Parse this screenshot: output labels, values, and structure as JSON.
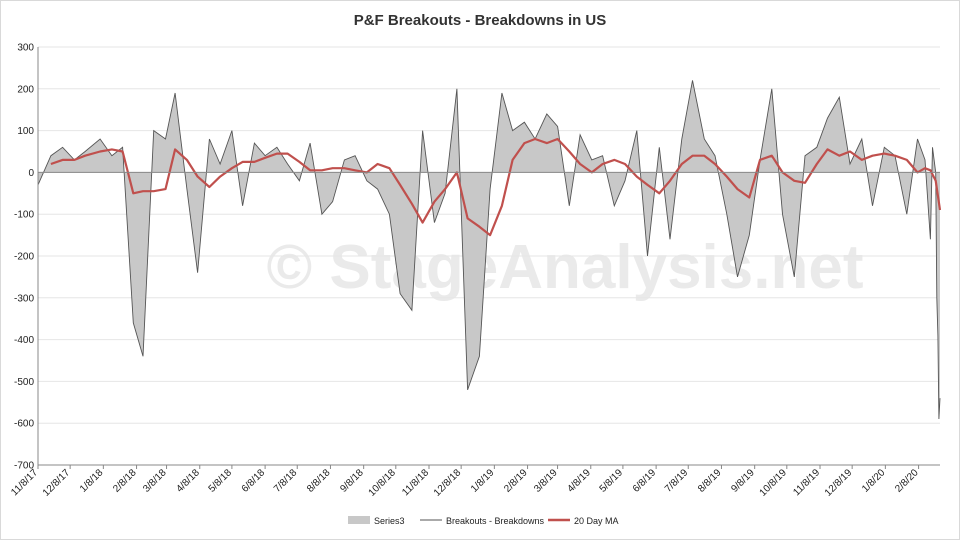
{
  "chart_data": {
    "type": "line",
    "title": "P&F Breakouts - Breakdowns in US",
    "watermark": "© StageAnalysis.net",
    "ylim": [
      -700,
      300
    ],
    "yticks": [
      300,
      200,
      100,
      0,
      -100,
      -200,
      -300,
      -400,
      -500,
      -600,
      -700
    ],
    "xlim": [
      "2017-11-08",
      "2020-02-28"
    ],
    "x_tick_labels": [
      "11/8/17",
      "12/8/17",
      "1/8/18",
      "2/8/18",
      "3/8/18",
      "4/8/18",
      "5/8/18",
      "6/8/18",
      "7/8/18",
      "8/8/18",
      "9/8/18",
      "10/8/18",
      "11/8/18",
      "12/8/18",
      "1/8/19",
      "2/8/19",
      "3/8/19",
      "4/8/19",
      "5/8/19",
      "6/8/19",
      "7/8/19",
      "8/8/19",
      "9/8/19",
      "10/8/19",
      "11/8/19",
      "12/8/19",
      "1/8/20",
      "2/8/20"
    ],
    "legend_placement": "bottom",
    "colors": {
      "area": "#c8c8c8",
      "raw_line": "#555555",
      "ma_line": "#c0504d",
      "axis": "#888888"
    },
    "series": [
      {
        "name": "Series3",
        "kind": "area",
        "values_note": "",
        "x": [
          "2017-11-08",
          "2017-11-20",
          "2017-12-01",
          "2017-12-12",
          "2017-12-22",
          "2018-01-05",
          "2018-01-16",
          "2018-01-26",
          "2018-02-05",
          "2018-02-14",
          "2018-02-24",
          "2018-03-07",
          "2018-03-16",
          "2018-03-27",
          "2018-04-06",
          "2018-04-17",
          "2018-04-27",
          "2018-05-08",
          "2018-05-18",
          "2018-05-29",
          "2018-06-08",
          "2018-06-19",
          "2018-06-29",
          "2018-07-10",
          "2018-07-20",
          "2018-07-31",
          "2018-08-10",
          "2018-08-21",
          "2018-08-31",
          "2018-09-11",
          "2018-09-21",
          "2018-10-02",
          "2018-10-12",
          "2018-10-23",
          "2018-11-02",
          "2018-11-13",
          "2018-11-23",
          "2018-12-04",
          "2018-12-14",
          "2018-12-25",
          "2019-01-04",
          "2019-01-15",
          "2019-01-25",
          "2019-02-05",
          "2019-02-15",
          "2019-02-26",
          "2019-03-08",
          "2019-03-19",
          "2019-03-29",
          "2019-04-09",
          "2019-04-19",
          "2019-04-30",
          "2019-05-10",
          "2019-05-21",
          "2019-05-31",
          "2019-06-11",
          "2019-06-21",
          "2019-07-02",
          "2019-07-12",
          "2019-07-23",
          "2019-08-02",
          "2019-08-13",
          "2019-08-23",
          "2019-09-03",
          "2019-09-13",
          "2019-09-24",
          "2019-10-04",
          "2019-10-15",
          "2019-10-25",
          "2019-11-05",
          "2019-11-15",
          "2019-11-26",
          "2019-12-06",
          "2019-12-17",
          "2019-12-27",
          "2020-01-07",
          "2020-01-17",
          "2020-01-28",
          "2020-02-07",
          "2020-02-14",
          "2020-02-19",
          "2020-02-21",
          "2020-02-24",
          "2020-02-25",
          "2020-02-26",
          "2020-02-27",
          "2020-02-28"
        ],
        "values": [
          -30,
          40,
          60,
          30,
          50,
          80,
          40,
          60,
          -360,
          -440,
          100,
          80,
          190,
          -40,
          -240,
          80,
          20,
          100,
          -80,
          70,
          40,
          60,
          20,
          -20,
          70,
          -100,
          -70,
          30,
          40,
          -20,
          -40,
          -100,
          -290,
          -330,
          100,
          -120,
          -50,
          200,
          -520,
          -440,
          -40,
          190,
          100,
          120,
          80,
          140,
          110,
          -80,
          90,
          30,
          40,
          -80,
          -20,
          100,
          -200,
          60,
          -160,
          80,
          220,
          80,
          40,
          -100,
          -250,
          -150,
          30,
          200,
          -100,
          -250,
          40,
          60,
          130,
          180,
          20,
          80,
          -80,
          60,
          40,
          -100,
          80,
          30,
          -160,
          60,
          0,
          -300,
          -390,
          -590,
          -540
        ]
      },
      {
        "name": "Breakouts - Breakdowns",
        "kind": "line"
      },
      {
        "name": "20 Day MA",
        "kind": "line",
        "x": [
          "2017-11-20",
          "2017-12-01",
          "2017-12-12",
          "2017-12-22",
          "2018-01-05",
          "2018-01-16",
          "2018-01-26",
          "2018-02-05",
          "2018-02-14",
          "2018-02-24",
          "2018-03-07",
          "2018-03-16",
          "2018-03-27",
          "2018-04-06",
          "2018-04-17",
          "2018-04-27",
          "2018-05-08",
          "2018-05-18",
          "2018-05-29",
          "2018-06-08",
          "2018-06-19",
          "2018-06-29",
          "2018-07-10",
          "2018-07-20",
          "2018-07-31",
          "2018-08-10",
          "2018-08-21",
          "2018-08-31",
          "2018-09-11",
          "2018-09-21",
          "2018-10-02",
          "2018-10-12",
          "2018-10-23",
          "2018-11-02",
          "2018-11-13",
          "2018-11-23",
          "2018-12-04",
          "2018-12-14",
          "2018-12-25",
          "2019-01-04",
          "2019-01-15",
          "2019-01-25",
          "2019-02-05",
          "2019-02-15",
          "2019-02-26",
          "2019-03-08",
          "2019-03-19",
          "2019-03-29",
          "2019-04-09",
          "2019-04-19",
          "2019-04-30",
          "2019-05-10",
          "2019-05-21",
          "2019-05-31",
          "2019-06-11",
          "2019-06-21",
          "2019-07-02",
          "2019-07-12",
          "2019-07-23",
          "2019-08-02",
          "2019-08-13",
          "2019-08-23",
          "2019-09-03",
          "2019-09-13",
          "2019-09-24",
          "2019-10-04",
          "2019-10-15",
          "2019-10-25",
          "2019-11-05",
          "2019-11-15",
          "2019-11-26",
          "2019-12-06",
          "2019-12-17",
          "2019-12-27",
          "2020-01-07",
          "2020-01-17",
          "2020-01-28",
          "2020-02-07",
          "2020-02-14",
          "2020-02-19",
          "2020-02-24",
          "2020-02-28"
        ],
        "values": [
          20,
          30,
          30,
          40,
          50,
          55,
          50,
          -50,
          -45,
          -45,
          -40,
          55,
          30,
          -10,
          -35,
          -10,
          10,
          25,
          25,
          35,
          45,
          45,
          25,
          5,
          5,
          10,
          10,
          5,
          0,
          20,
          10,
          -30,
          -75,
          -120,
          -70,
          -40,
          0,
          -110,
          -130,
          -150,
          -80,
          30,
          70,
          80,
          70,
          80,
          50,
          20,
          0,
          20,
          30,
          20,
          -10,
          -30,
          -50,
          -20,
          20,
          40,
          40,
          20,
          -10,
          -40,
          -60,
          30,
          40,
          0,
          -20,
          -25,
          20,
          55,
          40,
          50,
          30,
          40,
          45,
          40,
          30,
          0,
          10,
          5,
          -20,
          -90
        ]
      }
    ]
  }
}
